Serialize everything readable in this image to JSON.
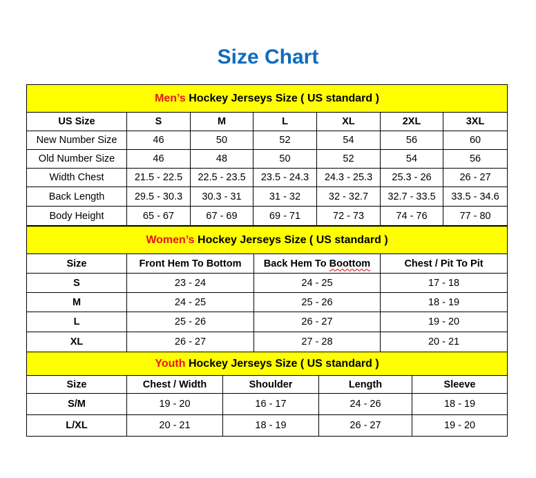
{
  "title": "Size Chart",
  "colors": {
    "title": "#0d6cbf",
    "section_bg": "#ffff00",
    "section_accent": "#e8141b"
  },
  "men": {
    "section": {
      "accent": "Men’s",
      "rest": " Hockey Jerseys Size ( US standard )"
    },
    "header": [
      "US Size",
      "S",
      "M",
      "L",
      "XL",
      "2XL",
      "3XL"
    ],
    "rows": [
      [
        "New Number Size",
        "46",
        "50",
        "52",
        "54",
        "56",
        "60"
      ],
      [
        "Old Number Size",
        "46",
        "48",
        "50",
        "52",
        "54",
        "56"
      ],
      [
        "Width Chest",
        "21.5 - 22.5",
        "22.5 - 23.5",
        "23.5 - 24.3",
        "24.3 - 25.3",
        "25.3 - 26",
        "26 - 27"
      ],
      [
        "Back Length",
        "29.5 - 30.3",
        "30.3 - 31",
        "31 - 32",
        "32 - 32.7",
        "32.7 - 33.5",
        "33.5 - 34.6"
      ],
      [
        "Body Height",
        "65 - 67",
        "67 - 69",
        "69 - 71",
        "72 - 73",
        "74 - 76",
        "77 - 80"
      ]
    ]
  },
  "women": {
    "section": {
      "accent": "Women’s",
      "rest": " Hockey Jerseys Size ( US standard )"
    },
    "header": [
      "Size",
      "Front Hem To Bottom",
      "Back Hem To Boottom",
      "Chest / Pit To Pit"
    ],
    "rows": [
      [
        "S",
        "23 - 24",
        "24 - 25",
        "17 - 18"
      ],
      [
        "M",
        "24 - 25",
        "25 - 26",
        "18 - 19"
      ],
      [
        "L",
        "25 - 26",
        "26 - 27",
        "19 - 20"
      ],
      [
        "XL",
        "26 - 27",
        "27 - 28",
        "20 - 21"
      ]
    ]
  },
  "youth": {
    "section": {
      "accent": "Youth",
      "rest": " Hockey Jerseys Size ( US standard )"
    },
    "header": [
      "Size",
      "Chest / Width",
      "Shoulder",
      "Length",
      "Sleeve"
    ],
    "rows": [
      [
        "S/M",
        "19 - 20",
        "16 - 17",
        "24 - 26",
        "18 - 19"
      ],
      [
        "L/XL",
        "20 - 21",
        "18 - 19",
        "26 - 27",
        "19 - 20"
      ]
    ]
  }
}
